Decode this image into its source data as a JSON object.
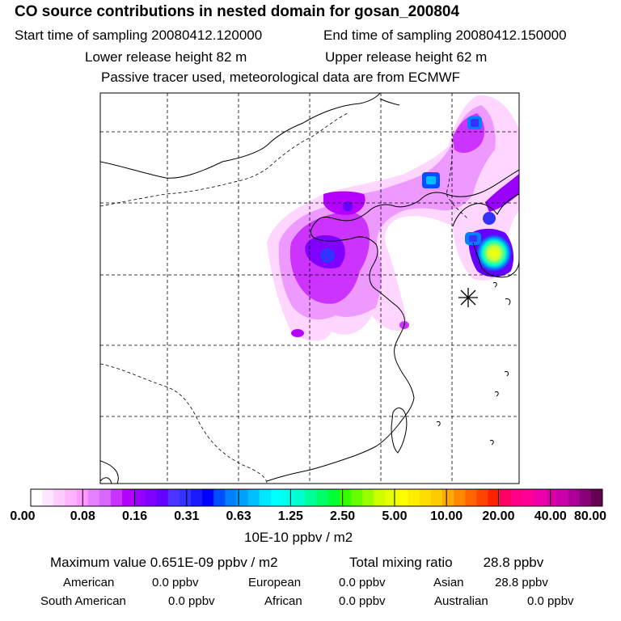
{
  "header": {
    "title": "CO  source contributions in nested domain for gosan_200804",
    "start_time": "Start time of sampling 20080412.120000",
    "end_time": "End time of sampling 20080412.150000",
    "lower_release": "Lower release height   82 m",
    "upper_release": "Upper release height   62 m",
    "tracer_note": "Passive tracer used, meteorological data are from ECMWF"
  },
  "colorbar": {
    "ticks": [
      "0.00",
      "0.08",
      "0.16",
      "0.31",
      "0.63",
      "1.25",
      "2.50",
      "5.00",
      "10.00",
      "20.00",
      "40.00",
      "80.00"
    ],
    "unit": "10E-10 ppbv / m2",
    "colors": [
      "#ffffff",
      "#ffe6ff",
      "#ffccff",
      "#ffb3ff",
      "#ff99ff",
      "#e680ff",
      "#d966ff",
      "#cc33ff",
      "#b300ff",
      "#9900ff",
      "#8000ff",
      "#6600ff",
      "#4d33ff",
      "#3333ff",
      "#1a1aff",
      "#0000ff",
      "#0050ff",
      "#0080ff",
      "#00a0ff",
      "#00c0ff",
      "#00e6ff",
      "#00ffff",
      "#00ffe6",
      "#00ffcc",
      "#00ff99",
      "#00ff66",
      "#00ff33",
      "#33ff00",
      "#66ff00",
      "#99ff00",
      "#ccff00",
      "#e6ff00",
      "#ffff00",
      "#ffee00",
      "#ffdd00",
      "#ffcc00",
      "#ffaa00",
      "#ff8800",
      "#ff6600",
      "#ff4400",
      "#ff2200",
      "#ff0066",
      "#ff0088",
      "#ff0099",
      "#ee00aa",
      "#dd00aa",
      "#cc00aa",
      "#aa0099",
      "#880077",
      "#660055"
    ]
  },
  "summary": {
    "max_value": "Maximum value  0.651E-09 ppbv / m2",
    "total_mixing": "Total mixing ratio",
    "total_value": "28.8 ppbv",
    "regions": [
      {
        "name": "American",
        "value": "0.0 ppbv"
      },
      {
        "name": "European",
        "value": "0.0 ppbv"
      },
      {
        "name": "Asian",
        "value": "28.8 ppbv"
      },
      {
        "name": "South American",
        "value": "0.0 ppbv"
      },
      {
        "name": "African",
        "value": "0.0 ppbv"
      },
      {
        "name": "Australian",
        "value": "0.0 ppbv"
      }
    ]
  }
}
